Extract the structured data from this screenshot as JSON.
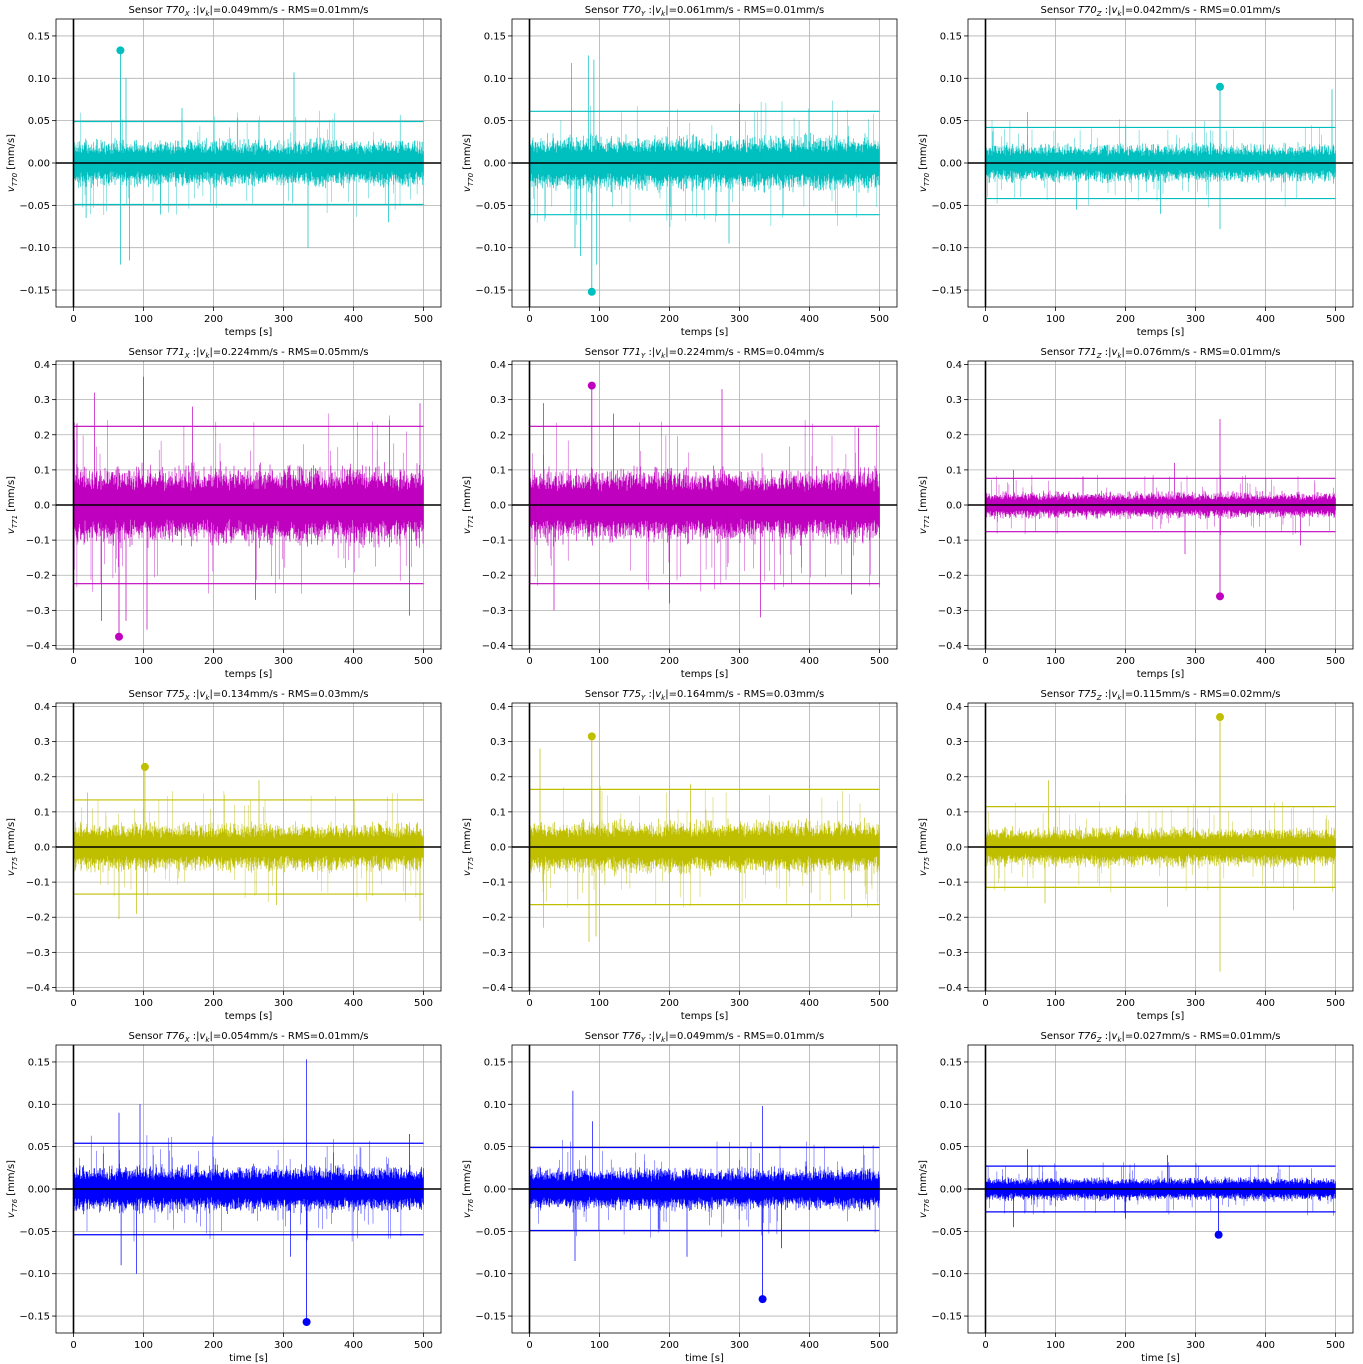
{
  "chart_data": [
    {
      "type": "line",
      "row": 0,
      "col": 0,
      "title_sensor": "T70",
      "title_axis": "X",
      "title_tail": "=0.049mm/s - RMS=0.01mm/s",
      "ylabel_sub": "T70",
      "ylabel_unit": "[mm/s]",
      "xlabel": "temps [s]",
      "xlim": [
        -25,
        525
      ],
      "ylim": [
        -0.17,
        0.17
      ],
      "xticks": [
        0,
        100,
        200,
        300,
        400,
        500
      ],
      "xtick_labels": [
        "0",
        "100",
        "200",
        "300",
        "400",
        "500"
      ],
      "yticks": [
        -0.15,
        -0.1,
        -0.05,
        0.0,
        0.05,
        0.1,
        0.15
      ],
      "ytick_labels": [
        "−0.15",
        "−0.10",
        "−0.05",
        "0.00",
        "0.05",
        "0.10",
        "0.15"
      ],
      "color": "#00bfbf",
      "threshold": 0.049,
      "noise": 0.022,
      "peak": {
        "x": 67,
        "y": 0.133
      },
      "spikes": [
        {
          "x": 67,
          "y": -0.12
        },
        {
          "x": 75,
          "y": 0.1
        },
        {
          "x": 80,
          "y": -0.115
        },
        {
          "x": 315,
          "y": 0.107
        },
        {
          "x": 335,
          "y": -0.1
        },
        {
          "x": 155,
          "y": 0.065
        },
        {
          "x": 450,
          "y": -0.07
        },
        {
          "x": 18,
          "y": -0.065
        }
      ]
    },
    {
      "type": "line",
      "row": 0,
      "col": 1,
      "title_sensor": "T70",
      "title_axis": "Y",
      "title_tail": "=0.061mm/s - RMS=0.01mm/s",
      "ylabel_sub": "T70",
      "ylabel_unit": "[mm/s]",
      "xlabel": "temps [s]",
      "xlim": [
        -25,
        525
      ],
      "ylim": [
        -0.17,
        0.17
      ],
      "xticks": [
        0,
        100,
        200,
        300,
        400,
        500
      ],
      "xtick_labels": [
        "0",
        "100",
        "200",
        "300",
        "400",
        "500"
      ],
      "yticks": [
        -0.15,
        -0.1,
        -0.05,
        0.0,
        0.05,
        0.1,
        0.15
      ],
      "ytick_labels": [
        "−0.15",
        "−0.10",
        "−0.05",
        "0.00",
        "0.05",
        "0.10",
        "0.15"
      ],
      "color": "#00bfbf",
      "threshold": 0.061,
      "noise": 0.026,
      "peak": {
        "x": 89,
        "y": -0.152
      },
      "spikes": [
        {
          "x": 60,
          "y": 0.118
        },
        {
          "x": 65,
          "y": -0.1
        },
        {
          "x": 84,
          "y": 0.127
        },
        {
          "x": 92,
          "y": 0.122
        },
        {
          "x": 96,
          "y": -0.12
        },
        {
          "x": 285,
          "y": -0.095
        },
        {
          "x": 73,
          "y": -0.11
        },
        {
          "x": 300,
          "y": 0.07
        }
      ]
    },
    {
      "type": "line",
      "row": 0,
      "col": 2,
      "title_sensor": "T70",
      "title_axis": "Z",
      "title_tail": "=0.042mm/s - RMS=0.01mm/s",
      "ylabel_sub": "T70",
      "ylabel_unit": "[mm/s]",
      "xlabel": "temps [s]",
      "xlim": [
        -25,
        525
      ],
      "ylim": [
        -0.17,
        0.17
      ],
      "xticks": [
        0,
        100,
        200,
        300,
        400,
        500
      ],
      "xtick_labels": [
        "0",
        "100",
        "200",
        "300",
        "400",
        "500"
      ],
      "yticks": [
        -0.15,
        -0.1,
        -0.05,
        0.0,
        0.05,
        0.1,
        0.15
      ],
      "ytick_labels": [
        "−0.15",
        "−0.10",
        "−0.05",
        "0.00",
        "0.05",
        "0.10",
        "0.15"
      ],
      "color": "#00bfbf",
      "threshold": 0.042,
      "noise": 0.018,
      "peak": {
        "x": 335,
        "y": 0.09
      },
      "spikes": [
        {
          "x": 335,
          "y": -0.078
        },
        {
          "x": 495,
          "y": 0.087
        },
        {
          "x": 250,
          "y": -0.06
        },
        {
          "x": 60,
          "y": 0.06
        },
        {
          "x": 130,
          "y": -0.055
        }
      ]
    },
    {
      "type": "line",
      "row": 1,
      "col": 0,
      "title_sensor": "T71",
      "title_axis": "X",
      "title_tail": "=0.224mm/s - RMS=0.05mm/s",
      "ylabel_sub": "T71",
      "ylabel_unit": "[mm/s]",
      "xlabel": "temps [s]",
      "xlim": [
        -25,
        525
      ],
      "ylim": [
        -0.41,
        0.41
      ],
      "xticks": [
        0,
        100,
        200,
        300,
        400,
        500
      ],
      "xtick_labels": [
        "0",
        "100",
        "200",
        "300",
        "400",
        "500"
      ],
      "yticks": [
        -0.4,
        -0.3,
        -0.2,
        -0.1,
        0.0,
        0.1,
        0.2,
        0.3,
        0.4
      ],
      "ytick_labels": [
        "−0.4",
        "−0.3",
        "−0.2",
        "−0.1",
        "0.0",
        "0.1",
        "0.2",
        "0.3",
        "0.4"
      ],
      "color": "#bf00bf",
      "threshold": 0.224,
      "noise": 0.09,
      "peak": {
        "x": 65,
        "y": -0.375
      },
      "spikes": [
        {
          "x": 100,
          "y": 0.365
        },
        {
          "x": 105,
          "y": -0.355
        },
        {
          "x": 30,
          "y": 0.32
        },
        {
          "x": 40,
          "y": -0.33
        },
        {
          "x": 480,
          "y": -0.315
        },
        {
          "x": 495,
          "y": 0.29
        },
        {
          "x": 170,
          "y": 0.28
        },
        {
          "x": 260,
          "y": -0.27
        },
        {
          "x": 75,
          "y": -0.33
        }
      ]
    },
    {
      "type": "line",
      "row": 1,
      "col": 1,
      "title_sensor": "T71",
      "title_axis": "Y",
      "title_tail": "=0.224mm/s - RMS=0.04mm/s",
      "ylabel_sub": "T71",
      "ylabel_unit": "[mm/s]",
      "xlabel": "temps [s]",
      "xlim": [
        -25,
        525
      ],
      "ylim": [
        -0.41,
        0.41
      ],
      "xticks": [
        0,
        100,
        200,
        300,
        400,
        500
      ],
      "xtick_labels": [
        "0",
        "100",
        "200",
        "300",
        "400",
        "500"
      ],
      "yticks": [
        -0.4,
        -0.3,
        -0.2,
        -0.1,
        0.0,
        0.1,
        0.2,
        0.3,
        0.4
      ],
      "ytick_labels": [
        "−0.4",
        "−0.3",
        "−0.2",
        "−0.1",
        "0.0",
        "0.1",
        "0.2",
        "0.3",
        "0.4"
      ],
      "color": "#bf00bf",
      "threshold": 0.224,
      "noise": 0.085,
      "peak": {
        "x": 89,
        "y": 0.34
      },
      "spikes": [
        {
          "x": 20,
          "y": 0.29
        },
        {
          "x": 35,
          "y": -0.3
        },
        {
          "x": 275,
          "y": 0.33
        },
        {
          "x": 330,
          "y": -0.32
        },
        {
          "x": 460,
          "y": -0.255
        },
        {
          "x": 470,
          "y": 0.22
        },
        {
          "x": 120,
          "y": 0.26
        },
        {
          "x": 200,
          "y": -0.28
        }
      ]
    },
    {
      "type": "line",
      "row": 1,
      "col": 2,
      "title_sensor": "T71",
      "title_axis": "Z",
      "title_tail": "=0.076mm/s - RMS=0.01mm/s",
      "ylabel_sub": "T71",
      "ylabel_unit": "[mm/s]",
      "xlabel": "temps [s]",
      "xlim": [
        -25,
        525
      ],
      "ylim": [
        -0.41,
        0.41
      ],
      "xticks": [
        0,
        100,
        200,
        300,
        400,
        500
      ],
      "xtick_labels": [
        "0",
        "100",
        "200",
        "300",
        "400",
        "500"
      ],
      "yticks": [
        -0.4,
        -0.3,
        -0.2,
        -0.1,
        0.0,
        0.1,
        0.2,
        0.3,
        0.4
      ],
      "ytick_labels": [
        "−0.4",
        "−0.3",
        "−0.2",
        "−0.1",
        "0.0",
        "0.1",
        "0.2",
        "0.3",
        "0.4"
      ],
      "color": "#bf00bf",
      "threshold": 0.076,
      "noise": 0.03,
      "peak": {
        "x": 335,
        "y": -0.26
      },
      "spikes": [
        {
          "x": 335,
          "y": 0.245
        },
        {
          "x": 270,
          "y": 0.12
        },
        {
          "x": 285,
          "y": -0.14
        },
        {
          "x": 450,
          "y": -0.115
        },
        {
          "x": 40,
          "y": 0.1
        }
      ]
    },
    {
      "type": "line",
      "row": 2,
      "col": 0,
      "title_sensor": "T75",
      "title_axis": "X",
      "title_tail": "=0.134mm/s - RMS=0.03mm/s",
      "ylabel_sub": "T75",
      "ylabel_unit": "[mm/s]",
      "xlabel": "temps [s]",
      "xlim": [
        -25,
        525
      ],
      "ylim": [
        -0.41,
        0.41
      ],
      "xticks": [
        0,
        100,
        200,
        300,
        400,
        500
      ],
      "xtick_labels": [
        "0",
        "100",
        "200",
        "300",
        "400",
        "500"
      ],
      "yticks": [
        -0.4,
        -0.3,
        -0.2,
        -0.1,
        0.0,
        0.1,
        0.2,
        0.3,
        0.4
      ],
      "ytick_labels": [
        "−0.4",
        "−0.3",
        "−0.2",
        "−0.1",
        "0.0",
        "0.1",
        "0.2",
        "0.3",
        "0.4"
      ],
      "color": "#bfbf00",
      "threshold": 0.134,
      "noise": 0.055,
      "peak": {
        "x": 102,
        "y": 0.228
      },
      "spikes": [
        {
          "x": 65,
          "y": -0.205
        },
        {
          "x": 90,
          "y": -0.19
        },
        {
          "x": 265,
          "y": 0.19
        },
        {
          "x": 495,
          "y": -0.21
        },
        {
          "x": 290,
          "y": -0.165
        },
        {
          "x": 20,
          "y": 0.155
        }
      ]
    },
    {
      "type": "line",
      "row": 2,
      "col": 1,
      "title_sensor": "T75",
      "title_axis": "Y",
      "title_tail": "=0.164mm/s - RMS=0.03mm/s",
      "ylabel_sub": "T75",
      "ylabel_unit": "[mm/s]",
      "xlabel": "temps [s]",
      "xlim": [
        -25,
        525
      ],
      "ylim": [
        -0.41,
        0.41
      ],
      "xticks": [
        0,
        100,
        200,
        300,
        400,
        500
      ],
      "xtick_labels": [
        "0",
        "100",
        "200",
        "300",
        "400",
        "500"
      ],
      "yticks": [
        -0.4,
        -0.3,
        -0.2,
        -0.1,
        0.0,
        0.1,
        0.2,
        0.3,
        0.4
      ],
      "ytick_labels": [
        "−0.4",
        "−0.3",
        "−0.2",
        "−0.1",
        "0.0",
        "0.1",
        "0.2",
        "0.3",
        "0.4"
      ],
      "color": "#bfbf00",
      "threshold": 0.164,
      "noise": 0.06,
      "peak": {
        "x": 89,
        "y": 0.315
      },
      "spikes": [
        {
          "x": 15,
          "y": 0.28
        },
        {
          "x": 20,
          "y": -0.23
        },
        {
          "x": 85,
          "y": -0.27
        },
        {
          "x": 95,
          "y": -0.255
        },
        {
          "x": 400,
          "y": 0.2
        },
        {
          "x": 460,
          "y": -0.2
        },
        {
          "x": 230,
          "y": 0.18
        }
      ]
    },
    {
      "type": "line",
      "row": 2,
      "col": 2,
      "title_sensor": "T75",
      "title_axis": "Z",
      "title_tail": "=0.115mm/s - RMS=0.02mm/s",
      "ylabel_sub": "T75",
      "ylabel_unit": "[mm/s]",
      "xlabel": "temps [s]",
      "xlim": [
        -25,
        525
      ],
      "ylim": [
        -0.41,
        0.41
      ],
      "xticks": [
        0,
        100,
        200,
        300,
        400,
        500
      ],
      "xtick_labels": [
        "0",
        "100",
        "200",
        "300",
        "400",
        "500"
      ],
      "yticks": [
        -0.4,
        -0.3,
        -0.2,
        -0.1,
        0.0,
        0.1,
        0.2,
        0.3,
        0.4
      ],
      "ytick_labels": [
        "−0.4",
        "−0.3",
        "−0.2",
        "−0.1",
        "0.0",
        "0.1",
        "0.2",
        "0.3",
        "0.4"
      ],
      "color": "#bfbf00",
      "threshold": 0.115,
      "noise": 0.045,
      "peak": {
        "x": 335,
        "y": 0.37
      },
      "spikes": [
        {
          "x": 335,
          "y": -0.355
        },
        {
          "x": 90,
          "y": 0.19
        },
        {
          "x": 85,
          "y": -0.16
        },
        {
          "x": 260,
          "y": -0.17
        },
        {
          "x": 440,
          "y": -0.18
        },
        {
          "x": 200,
          "y": 0.15
        }
      ]
    },
    {
      "type": "line",
      "row": 3,
      "col": 0,
      "title_sensor": "T76",
      "title_axis": "X",
      "title_tail": "=0.054mm/s - RMS=0.01mm/s",
      "ylabel_sub": "T76",
      "ylabel_unit": "[mm/s]",
      "xlabel": "time [s]",
      "xlim": [
        -25,
        525
      ],
      "ylim": [
        -0.17,
        0.17
      ],
      "xticks": [
        0,
        100,
        200,
        300,
        400,
        500
      ],
      "xtick_labels": [
        "0",
        "100",
        "200",
        "300",
        "400",
        "500"
      ],
      "yticks": [
        -0.15,
        -0.1,
        -0.05,
        0.0,
        0.05,
        0.1,
        0.15
      ],
      "ytick_labels": [
        "−0.15",
        "−0.10",
        "−0.05",
        "0.00",
        "0.05",
        "0.10",
        "0.15"
      ],
      "color": "#0000ff",
      "threshold": 0.054,
      "noise": 0.022,
      "peak": {
        "x": 333,
        "y": -0.157
      },
      "spikes": [
        {
          "x": 333,
          "y": 0.153
        },
        {
          "x": 65,
          "y": 0.09
        },
        {
          "x": 68,
          "y": -0.09
        },
        {
          "x": 90,
          "y": -0.1
        },
        {
          "x": 95,
          "y": 0.1
        },
        {
          "x": 310,
          "y": -0.08
        },
        {
          "x": 480,
          "y": 0.065
        }
      ]
    },
    {
      "type": "line",
      "row": 3,
      "col": 1,
      "title_sensor": "T76",
      "title_axis": "Y",
      "title_tail": "=0.049mm/s - RMS=0.01mm/s",
      "ylabel_sub": "T76",
      "ylabel_unit": "[mm/s]",
      "xlabel": "time [s]",
      "xlim": [
        -25,
        525
      ],
      "ylim": [
        -0.17,
        0.17
      ],
      "xticks": [
        0,
        100,
        200,
        300,
        400,
        500
      ],
      "xtick_labels": [
        "0",
        "100",
        "200",
        "300",
        "400",
        "500"
      ],
      "yticks": [
        -0.15,
        -0.1,
        -0.05,
        0.0,
        0.05,
        0.1,
        0.15
      ],
      "ytick_labels": [
        "−0.15",
        "−0.10",
        "−0.05",
        "0.00",
        "0.05",
        "0.10",
        "0.15"
      ],
      "color": "#0000ff",
      "threshold": 0.049,
      "noise": 0.02,
      "peak": {
        "x": 333,
        "y": -0.13
      },
      "spikes": [
        {
          "x": 333,
          "y": 0.098
        },
        {
          "x": 62,
          "y": 0.116
        },
        {
          "x": 65,
          "y": -0.085
        },
        {
          "x": 225,
          "y": -0.08
        },
        {
          "x": 90,
          "y": 0.08
        },
        {
          "x": 360,
          "y": -0.07
        }
      ]
    },
    {
      "type": "line",
      "row": 3,
      "col": 2,
      "title_sensor": "T76",
      "title_axis": "Z",
      "title_tail": "=0.027mm/s - RMS=0.01mm/s",
      "ylabel_sub": "T76",
      "ylabel_unit": "[mm/s]",
      "xlabel": "time [s]",
      "xlim": [
        -25,
        525
      ],
      "ylim": [
        -0.17,
        0.17
      ],
      "xticks": [
        0,
        100,
        200,
        300,
        400,
        500
      ],
      "xtick_labels": [
        "0",
        "100",
        "200",
        "300",
        "400",
        "500"
      ],
      "yticks": [
        -0.15,
        -0.1,
        -0.05,
        0.0,
        0.05,
        0.1,
        0.15
      ],
      "ytick_labels": [
        "−0.15",
        "−0.10",
        "−0.05",
        "0.00",
        "0.05",
        "0.10",
        "0.15"
      ],
      "color": "#0000ff",
      "threshold": 0.027,
      "noise": 0.011,
      "peak": {
        "x": 333,
        "y": -0.054
      },
      "spikes": [
        {
          "x": 60,
          "y": 0.047
        },
        {
          "x": 40,
          "y": -0.045
        },
        {
          "x": 260,
          "y": 0.04
        },
        {
          "x": 200,
          "y": -0.035
        }
      ]
    }
  ]
}
